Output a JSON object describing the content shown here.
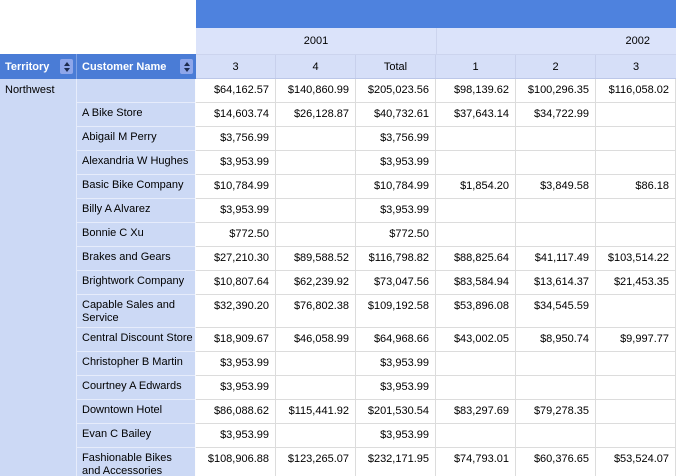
{
  "matrix": {
    "corner_headers": [
      {
        "label": "Territory"
      },
      {
        "label": "Customer Name"
      }
    ],
    "year_groups": [
      {
        "label": "2001"
      },
      {
        "label": "2002"
      }
    ],
    "column_headers": [
      "3",
      "4",
      "Total",
      "1",
      "2",
      "3"
    ],
    "territory": "Northwest",
    "rows": [
      {
        "name": "",
        "values": [
          "$64,162.57",
          "$140,860.99",
          "$205,023.56",
          "$98,139.62",
          "$100,296.35",
          "$116,058.02"
        ]
      },
      {
        "name": "A Bike Store",
        "values": [
          "$14,603.74",
          "$26,128.87",
          "$40,732.61",
          "$37,643.14",
          "$34,722.99",
          ""
        ]
      },
      {
        "name": "Abigail M Perry",
        "values": [
          "$3,756.99",
          "",
          "$3,756.99",
          "",
          "",
          ""
        ]
      },
      {
        "name": "Alexandria W Hughes",
        "values": [
          "$3,953.99",
          "",
          "$3,953.99",
          "",
          "",
          ""
        ]
      },
      {
        "name": "Basic Bike Company",
        "values": [
          "$10,784.99",
          "",
          "$10,784.99",
          "$1,854.20",
          "$3,849.58",
          "$86.18"
        ]
      },
      {
        "name": "Billy A Alvarez",
        "values": [
          "$3,953.99",
          "",
          "$3,953.99",
          "",
          "",
          ""
        ]
      },
      {
        "name": "Bonnie C Xu",
        "values": [
          "$772.50",
          "",
          "$772.50",
          "",
          "",
          ""
        ]
      },
      {
        "name": "Brakes and Gears",
        "values": [
          "$27,210.30",
          "$89,588.52",
          "$116,798.82",
          "$88,825.64",
          "$41,117.49",
          "$103,514.22"
        ]
      },
      {
        "name": "Brightwork Company",
        "values": [
          "$10,807.64",
          "$62,239.92",
          "$73,047.56",
          "$83,584.94",
          "$13,614.37",
          "$21,453.35"
        ]
      },
      {
        "name": "Capable Sales and Service",
        "values": [
          "$32,390.20",
          "$76,802.38",
          "$109,192.58",
          "$53,896.08",
          "$34,545.59",
          ""
        ]
      },
      {
        "name": "Central Discount Store",
        "values": [
          "$18,909.67",
          "$46,058.99",
          "$64,968.66",
          "$43,002.05",
          "$8,950.74",
          "$9,997.77"
        ]
      },
      {
        "name": "Christopher B Martin",
        "values": [
          "$3,953.99",
          "",
          "$3,953.99",
          "",
          "",
          ""
        ]
      },
      {
        "name": "Courtney A Edwards",
        "values": [
          "$3,953.99",
          "",
          "$3,953.99",
          "",
          "",
          ""
        ]
      },
      {
        "name": "Downtown Hotel",
        "values": [
          "$86,088.62",
          "$115,441.92",
          "$201,530.54",
          "$83,297.69",
          "$79,278.35",
          ""
        ]
      },
      {
        "name": "Evan C Bailey",
        "values": [
          "$3,953.99",
          "",
          "$3,953.99",
          "",
          "",
          ""
        ]
      },
      {
        "name": "Fashionable Bikes and Accessories",
        "values": [
          "$108,906.88",
          "$123,265.07",
          "$232,171.95",
          "$74,793.01",
          "$60,376.65",
          "$53,524.07"
        ]
      }
    ]
  },
  "icons": {
    "sort": "sort-up-down-arrows"
  },
  "colors": {
    "band_blue": "#4e82de",
    "header_blue": "#4a7cd6",
    "sort_button_blue": "#8ea6ea",
    "sort_arrow_dark": "#1d2b4f",
    "year_band_bg": "#dbe3fa",
    "column_header_bg": "#d6dff8",
    "row_header_bg": "#ccd9f5",
    "data_grid_line": "#dcdcdc"
  }
}
